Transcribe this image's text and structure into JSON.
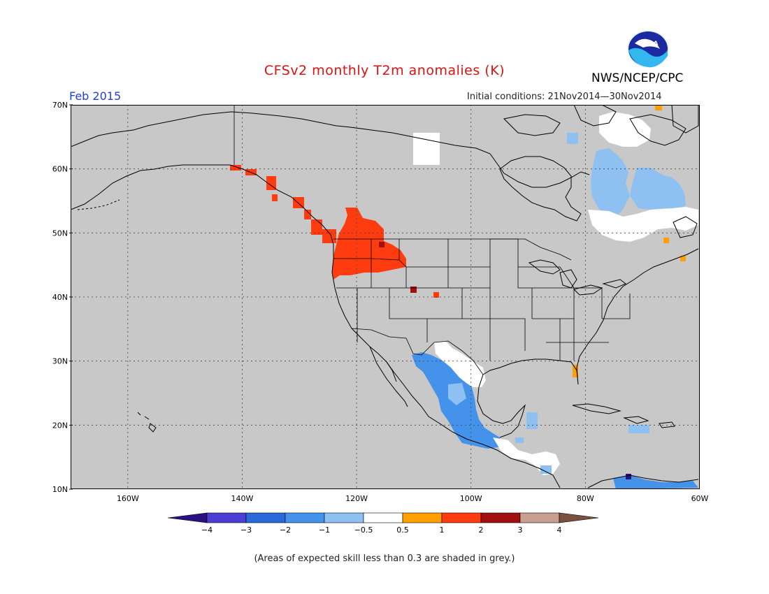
{
  "title": "CFSv2 monthly T2m anomalies (K)",
  "month_label": "Feb 2015",
  "initial_conditions": "Initial conditions: 21Nov2014—30Nov2014",
  "org": "NWS/NCEP/CPC",
  "logo": {
    "text": "NOAA",
    "icon": "noaa-logo-icon"
  },
  "map": {
    "lat_ticks": [
      "70N",
      "60N",
      "50N",
      "40N",
      "30N",
      "20N",
      "10N"
    ],
    "lon_ticks": [
      "160W",
      "140W",
      "120W",
      "100W",
      "80W",
      "60W"
    ],
    "lat_range": [
      10,
      70
    ],
    "lon_range": [
      -170,
      -60
    ],
    "background_color": "#c8c8c8",
    "grid": true
  },
  "colorbar": {
    "labels": [
      "−4",
      "−3",
      "−2",
      "−1",
      "−0.5",
      "0.5",
      "1",
      "2",
      "3",
      "4"
    ],
    "colors": [
      "#2a1080",
      "#4a3fd0",
      "#2a6ad8",
      "#4592ea",
      "#8ec0f2",
      "#ffffff",
      "#ffa000",
      "#ff3c10",
      "#a01010",
      "#c8a090",
      "#7a5040"
    ]
  },
  "footnote": "(Areas of expected skill less than 0.3 are shaded in grey.)"
}
